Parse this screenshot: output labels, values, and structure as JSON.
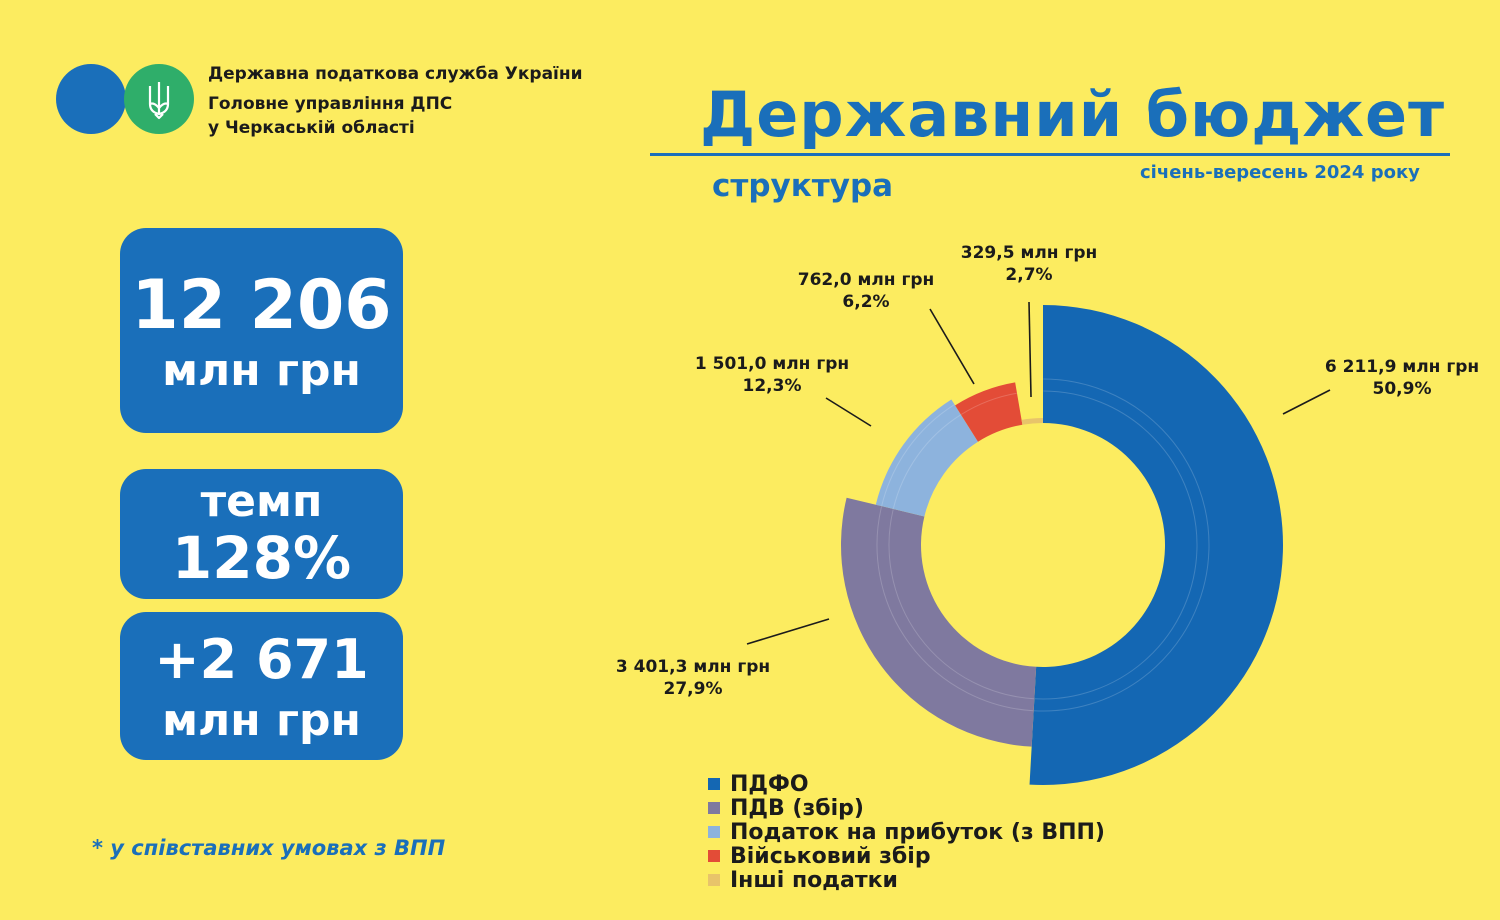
{
  "header": {
    "org_line1": "Державна податкова служба України",
    "org_line2": "Головне управління ДПС",
    "org_line3": "у Черкаській області",
    "title": "Державний бюджет",
    "subtitle": "структура",
    "period": "січень-вересень 2024 року"
  },
  "cards": {
    "total_value": "12 206",
    "total_unit": "млн грн",
    "rate_label": "темп",
    "rate_value": "128%",
    "growth_value": "+2 671",
    "growth_unit": "млн грн"
  },
  "footnote": "* у співставних умовах з ВПП",
  "colors": {
    "background": "#fcec60",
    "accent": "#1a6fba",
    "logo_green": "#2fae6a"
  },
  "chart_data": {
    "type": "pie",
    "variant": "donut",
    "title": "",
    "legend_position": "bottom",
    "slices": [
      {
        "name": "ПДФО",
        "value": 6211.9,
        "value_label": "6 211,9 млн грн",
        "percent_label": "50,9%",
        "color": "#1467b3"
      },
      {
        "name": "ПДВ (збір)",
        "value": 3401.3,
        "value_label": "3 401,3 млн грн",
        "percent_label": "27,9%",
        "color": "#7f799f"
      },
      {
        "name": "Податок на прибуток (з ВПП)",
        "value": 1501.0,
        "value_label": "1 501,0 млн грн",
        "percent_label": "12,3%",
        "color": "#8db3dd"
      },
      {
        "name": "Військовий збір",
        "value": 762.0,
        "value_label": "762,0 млн грн",
        "percent_label": "6,2%",
        "color": "#e34c37"
      },
      {
        "name": "Інші податки",
        "value": 329.5,
        "value_label": "329,5 млн грн",
        "percent_label": "2,7%",
        "color": "#e8c46a"
      }
    ]
  }
}
